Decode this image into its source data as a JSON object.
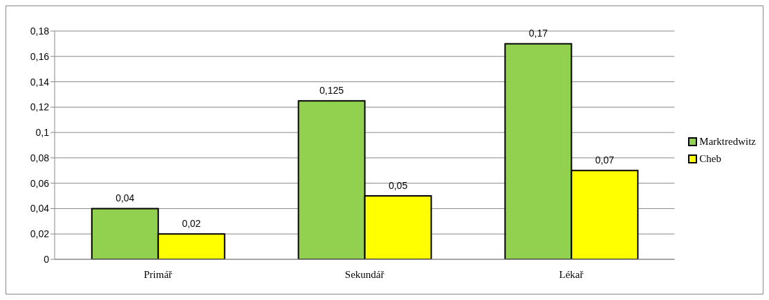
{
  "chart_data": {
    "type": "bar",
    "categories": [
      "Primář",
      "Sekundář",
      "Lékař"
    ],
    "series": [
      {
        "name": "Marktredwitz",
        "color": "#92d050",
        "values": [
          0.04,
          0.125,
          0.17
        ],
        "value_labels": [
          "0,04",
          "0,125",
          "0,17"
        ]
      },
      {
        "name": "Cheb",
        "color": "#ffff00",
        "values": [
          0.02,
          0.05,
          0.07
        ],
        "value_labels": [
          "0,02",
          "0,05",
          "0,07"
        ]
      }
    ],
    "ylim": [
      0,
      0.18
    ],
    "yticks": [
      {
        "value": 0,
        "label": "0"
      },
      {
        "value": 0.02,
        "label": "0,02"
      },
      {
        "value": 0.04,
        "label": "0,04"
      },
      {
        "value": 0.06,
        "label": "0,06"
      },
      {
        "value": 0.08,
        "label": "0,08"
      },
      {
        "value": 0.1,
        "label": "0,1"
      },
      {
        "value": 0.12,
        "label": "0,12"
      },
      {
        "value": 0.14,
        "label": "0,14"
      },
      {
        "value": 0.16,
        "label": "0,16"
      },
      {
        "value": 0.18,
        "label": "0,18"
      }
    ],
    "grid": "y",
    "legend": "right"
  }
}
